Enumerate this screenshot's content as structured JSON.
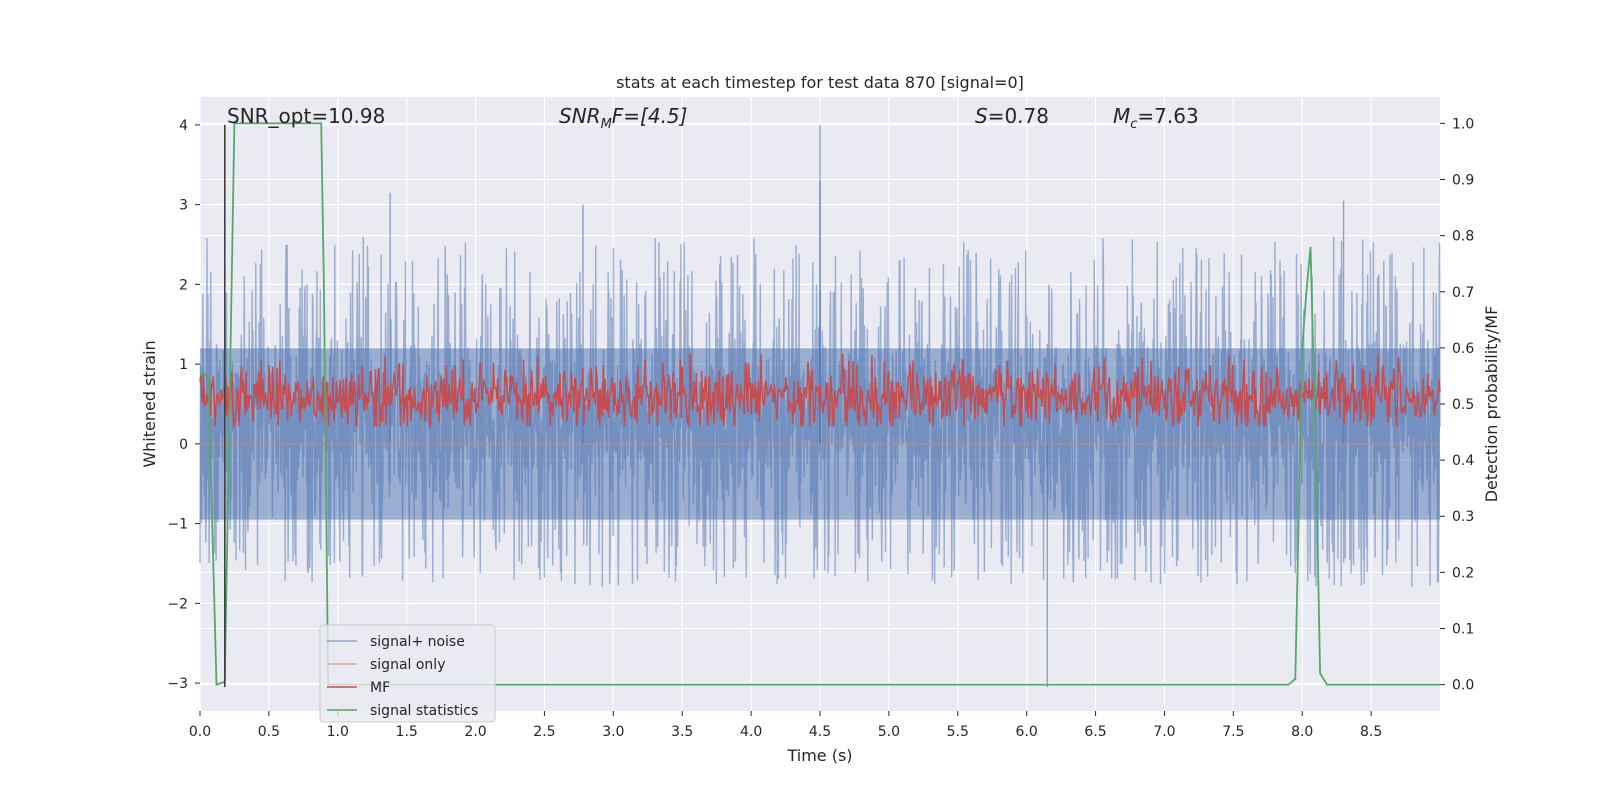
{
  "chart_data": {
    "type": "line",
    "title": "stats at each timestep for test data 870 [signal=0]",
    "xlabel": "Time (s)",
    "ylabel": "Whitened strain",
    "y2label": "Detection probability/MF",
    "xlim": [
      0.0,
      9.0
    ],
    "ylim": [
      -3.35,
      4.35
    ],
    "y2lim": [
      -0.047,
      1.047
    ],
    "xticks": [
      "0.0",
      "0.5",
      "1.0",
      "1.5",
      "2.0",
      "2.5",
      "3.0",
      "3.5",
      "4.0",
      "4.5",
      "5.0",
      "5.5",
      "6.0",
      "6.5",
      "7.0",
      "7.5",
      "8.0",
      "8.5"
    ],
    "yticks": [
      "4",
      "3",
      "2",
      "1",
      "0",
      "−1",
      "−2",
      "−3"
    ],
    "y2ticks": [
      "1.0",
      "0.9",
      "0.8",
      "0.7",
      "0.6",
      "0.5",
      "0.4",
      "0.3",
      "0.2",
      "0.1",
      "0.0"
    ],
    "grid": true,
    "legend_position": "lower-left",
    "annotations": {
      "snr_opt": "SNR_opt=10.98",
      "snr_mf_base": "SNR",
      "snr_mf_sub": "M",
      "snr_mf_rest": "F=[4.5]",
      "s_main": "S",
      "s_rest": "=0.78",
      "mc_main": "M",
      "mc_sub": "c",
      "mc_rest": "=7.63"
    },
    "series": [
      {
        "name": "signal+ noise",
        "color": "#4c72b0",
        "axis": "left",
        "note": "dense noise, approx. -3.05 to 4.0 strain",
        "envelope_y": [
          -1.8,
          2.6
        ],
        "spikes": [
          [
            4.5,
            4.0
          ],
          [
            6.15,
            -3.05
          ],
          [
            4.5,
            3.3
          ],
          [
            1.38,
            3.15
          ],
          [
            8.3,
            3.05
          ],
          [
            2.78,
            3.0
          ]
        ]
      },
      {
        "name": "signal only",
        "color": "#dd8452",
        "axis": "left",
        "x": [
          0.0,
          9.0
        ],
        "y": [
          0.0,
          0.0
        ]
      },
      {
        "name": "MF",
        "color": "#c44e52",
        "axis": "right",
        "band_y2": [
          0.47,
          0.55
        ]
      },
      {
        "name": "signal statistics",
        "color": "#55a868",
        "axis": "right",
        "x": [
          0.0,
          0.06,
          0.12,
          0.18,
          0.25,
          0.3,
          0.88,
          0.9,
          0.93,
          1.0,
          7.5,
          7.9,
          7.95,
          8.0,
          8.03,
          8.06,
          8.1,
          8.13,
          8.18,
          9.0
        ],
        "y": [
          0.555,
          0.55,
          0.0,
          0.005,
          1.0,
          1.0,
          1.0,
          0.7,
          0.0,
          0.0,
          0.0,
          0.0,
          0.01,
          0.6,
          0.7,
          0.78,
          0.4,
          0.02,
          0.0,
          0.0
        ]
      }
    ],
    "marker_line": {
      "x": 0.18,
      "y_from": -3.05,
      "y_to": 4.0,
      "color": "#404040"
    }
  }
}
